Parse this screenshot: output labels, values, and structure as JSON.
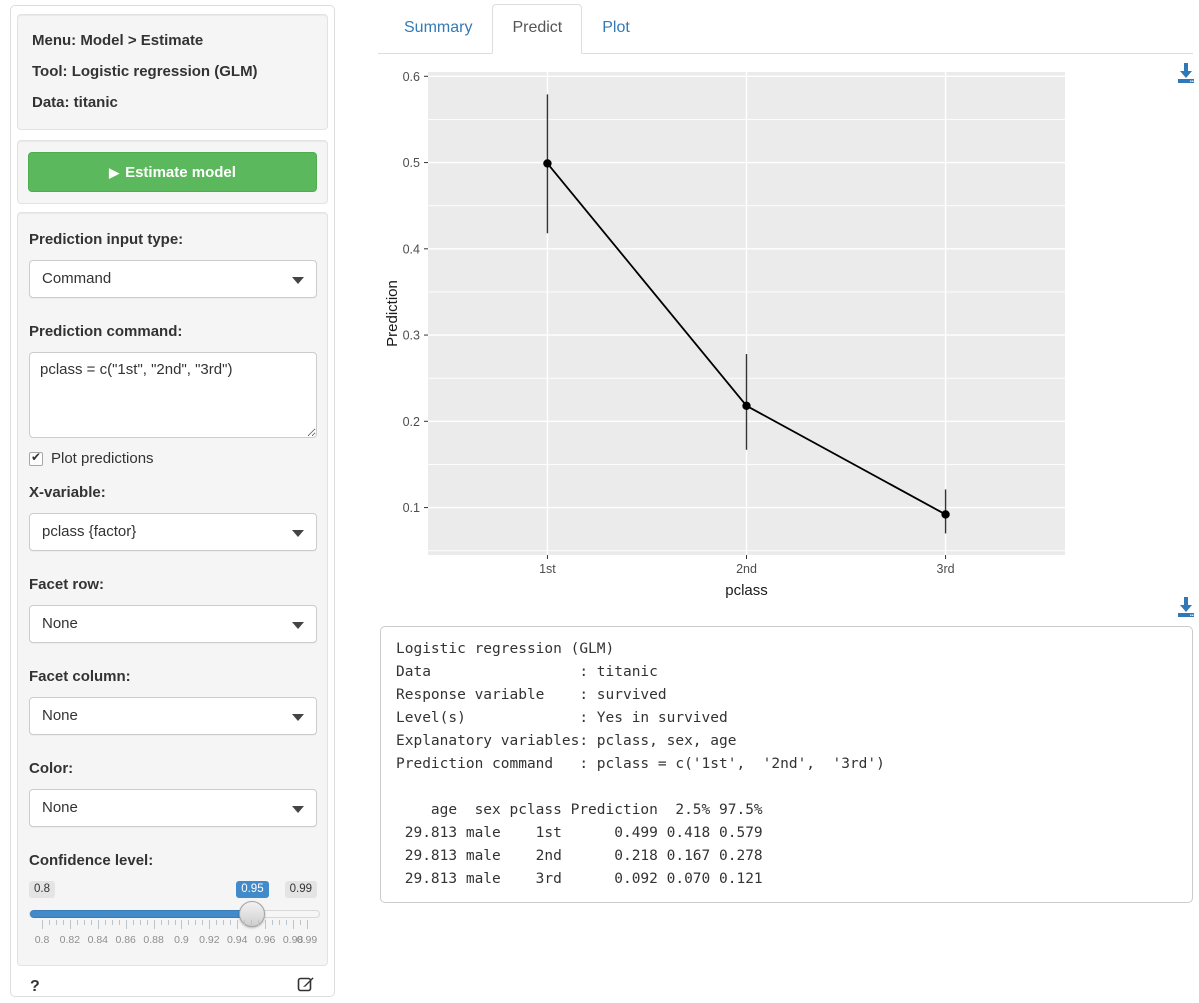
{
  "colors": {
    "accent": "#337ab7",
    "button_green": "#5cb85c",
    "slider_blue": "#428bca",
    "panel_bg": "#ebebeb",
    "grid_color": "#ffffff"
  },
  "sidebar": {
    "header": {
      "menu": "Menu: Model > Estimate",
      "tool": "Tool: Logistic regression (GLM)",
      "data": "Data: titanic"
    },
    "estimate_button": "Estimate model",
    "input_type": {
      "label": "Prediction input type:",
      "value": "Command"
    },
    "command": {
      "label": "Prediction command:",
      "value": "pclass = c(\"1st\", \"2nd\", \"3rd\")"
    },
    "plot_predictions": {
      "label": "Plot predictions",
      "checked": true
    },
    "x_variable": {
      "label": "X-variable:",
      "value": "pclass {factor}"
    },
    "facet_row": {
      "label": "Facet row:",
      "value": "None"
    },
    "facet_column": {
      "label": "Facet column:",
      "value": "None"
    },
    "color": {
      "label": "Color:",
      "value": "None"
    },
    "confidence": {
      "label": "Confidence level:",
      "min": 0.8,
      "max": 0.99,
      "value": 0.95,
      "min_label": "0.8",
      "max_label": "0.99",
      "value_label": "0.95",
      "grid_labels": [
        "0.8",
        "0.82",
        "0.84",
        "0.86",
        "0.88",
        "0.9",
        "0.92",
        "0.94",
        "0.96",
        "0.98",
        "0.99"
      ]
    },
    "help_label": "?"
  },
  "tabs": {
    "summary": "Summary",
    "predict": "Predict",
    "plot": "Plot"
  },
  "chart_data": {
    "type": "line",
    "categories": [
      "1st",
      "2nd",
      "3rd"
    ],
    "series": [
      {
        "name": "Prediction",
        "values": [
          0.499,
          0.218,
          0.092
        ],
        "ci_low": [
          0.418,
          0.167,
          0.07
        ],
        "ci_high": [
          0.579,
          0.278,
          0.121
        ]
      }
    ],
    "xlabel": "pclass",
    "ylabel": "Prediction",
    "yticks": [
      0.1,
      0.2,
      0.3,
      0.4,
      0.5,
      0.6
    ],
    "ylim": [
      0.045,
      0.605
    ],
    "grid": true,
    "legend": "none",
    "panel_bg": "#ebebeb",
    "grid_color": "#ffffff",
    "point_color": "#000000"
  },
  "output": {
    "lines": [
      "Logistic regression (GLM)",
      "Data                 : titanic",
      "Response variable    : survived",
      "Level(s)             : Yes in survived",
      "Explanatory variables: pclass, sex, age",
      "Prediction command   : pclass = c('1st',  '2nd',  '3rd')",
      "",
      "    age  sex pclass Prediction  2.5% 97.5%",
      " 29.813 male    1st      0.499 0.418 0.579",
      " 29.813 male    2nd      0.218 0.167 0.278",
      " 29.813 male    3rd      0.092 0.070 0.121"
    ]
  }
}
